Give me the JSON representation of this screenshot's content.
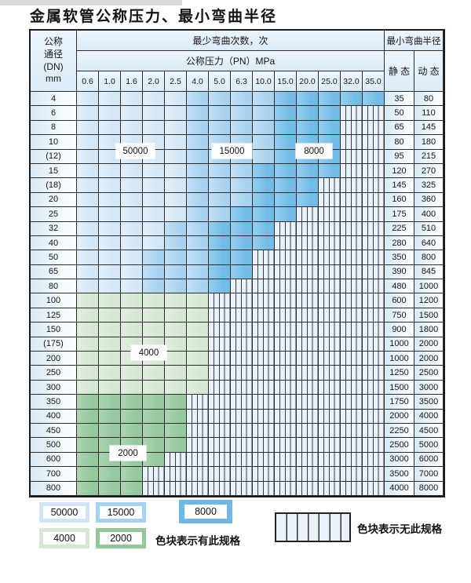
{
  "title": "金属软管公称压力、最小弯曲半径",
  "table": {
    "header": {
      "dn_lines": [
        "公称",
        "通径",
        "(DN)",
        "mm"
      ],
      "bend_cycles": "最少弯曲次数，次",
      "pressure": "公称压力（PN）MPa",
      "pressure_values": [
        "0.6",
        "1.0",
        "1.6",
        "2.0",
        "2.5",
        "4.0",
        "5.0",
        "6.3",
        "10.0",
        "15.0",
        "20.0",
        "25.0",
        "32.0",
        "35.0"
      ],
      "min_bend_radius": "最小弯曲半径",
      "static_label": "静 态",
      "dynamic_label": "动 态"
    },
    "zone_legend_note": "zones per row: light=50000次, medium=15000次, dark=8000次, green_light=4000次, green_dark=2000次, remaining columns hatched = 无此规格",
    "rows": [
      {
        "dn": "4",
        "static": "35",
        "dynamic": "80",
        "light": 5,
        "medium": 4,
        "dark": 5,
        "green_light": 0,
        "green_dark": 0
      },
      {
        "dn": "6",
        "static": "50",
        "dynamic": "110",
        "light": 5,
        "medium": 4,
        "dark": 3,
        "green_light": 0,
        "green_dark": 0
      },
      {
        "dn": "8",
        "static": "65",
        "dynamic": "145",
        "light": 5,
        "medium": 4,
        "dark": 3,
        "green_light": 0,
        "green_dark": 0
      },
      {
        "dn": "10",
        "static": "80",
        "dynamic": "180",
        "light": 5,
        "medium": 4,
        "dark": 3,
        "green_light": 0,
        "green_dark": 0
      },
      {
        "dn": "(12)",
        "static": "95",
        "dynamic": "215",
        "light": 5,
        "medium": 4,
        "dark": 3,
        "green_light": 0,
        "green_dark": 0
      },
      {
        "dn": "15",
        "static": "120",
        "dynamic": "270",
        "light": 5,
        "medium": 3,
        "dark": 4,
        "green_light": 0,
        "green_dark": 0
      },
      {
        "dn": "(18)",
        "static": "145",
        "dynamic": "325",
        "light": 5,
        "medium": 3,
        "dark": 3,
        "green_light": 0,
        "green_dark": 0
      },
      {
        "dn": "20",
        "static": "160",
        "dynamic": "360",
        "light": 5,
        "medium": 3,
        "dark": 3,
        "green_light": 0,
        "green_dark": 0
      },
      {
        "dn": "25",
        "static": "175",
        "dynamic": "400",
        "light": 5,
        "medium": 2,
        "dark": 3,
        "green_light": 0,
        "green_dark": 0
      },
      {
        "dn": "32",
        "static": "225",
        "dynamic": "510",
        "light": 4,
        "medium": 2,
        "dark": 3,
        "green_light": 0,
        "green_dark": 0
      },
      {
        "dn": "40",
        "static": "280",
        "dynamic": "640",
        "light": 4,
        "medium": 2,
        "dark": 3,
        "green_light": 0,
        "green_dark": 0
      },
      {
        "dn": "50",
        "static": "350",
        "dynamic": "800",
        "light": 3,
        "medium": 3,
        "dark": 2,
        "green_light": 0,
        "green_dark": 0
      },
      {
        "dn": "65",
        "static": "390",
        "dynamic": "845",
        "light": 3,
        "medium": 3,
        "dark": 2,
        "green_light": 0,
        "green_dark": 0
      },
      {
        "dn": "80",
        "static": "480",
        "dynamic": "1000",
        "light": 3,
        "medium": 3,
        "dark": 1,
        "green_light": 0,
        "green_dark": 0
      },
      {
        "dn": "100",
        "static": "600",
        "dynamic": "1200",
        "light": 0,
        "medium": 0,
        "dark": 0,
        "green_light": 6,
        "green_dark": 0
      },
      {
        "dn": "125",
        "static": "750",
        "dynamic": "1500",
        "light": 0,
        "medium": 0,
        "dark": 0,
        "green_light": 6,
        "green_dark": 0
      },
      {
        "dn": "150",
        "static": "900",
        "dynamic": "1800",
        "light": 0,
        "medium": 0,
        "dark": 0,
        "green_light": 6,
        "green_dark": 0
      },
      {
        "dn": "(175)",
        "static": "1000",
        "dynamic": "2000",
        "light": 0,
        "medium": 0,
        "dark": 0,
        "green_light": 6,
        "green_dark": 0
      },
      {
        "dn": "200",
        "static": "1000",
        "dynamic": "2000",
        "light": 0,
        "medium": 0,
        "dark": 0,
        "green_light": 6,
        "green_dark": 0
      },
      {
        "dn": "250",
        "static": "1250",
        "dynamic": "2500",
        "light": 0,
        "medium": 0,
        "dark": 0,
        "green_light": 6,
        "green_dark": 0
      },
      {
        "dn": "300",
        "static": "1500",
        "dynamic": "3000",
        "light": 0,
        "medium": 0,
        "dark": 0,
        "green_light": 6,
        "green_dark": 0
      },
      {
        "dn": "350",
        "static": "1750",
        "dynamic": "3500",
        "light": 0,
        "medium": 0,
        "dark": 0,
        "green_light": 0,
        "green_dark": 5
      },
      {
        "dn": "400",
        "static": "2000",
        "dynamic": "4000",
        "light": 0,
        "medium": 0,
        "dark": 0,
        "green_light": 0,
        "green_dark": 5
      },
      {
        "dn": "450",
        "static": "2250",
        "dynamic": "4500",
        "light": 0,
        "medium": 0,
        "dark": 0,
        "green_light": 0,
        "green_dark": 5
      },
      {
        "dn": "500",
        "static": "2500",
        "dynamic": "5000",
        "light": 0,
        "medium": 0,
        "dark": 0,
        "green_light": 0,
        "green_dark": 5
      },
      {
        "dn": "600",
        "static": "3000",
        "dynamic": "6000",
        "light": 0,
        "medium": 0,
        "dark": 0,
        "green_light": 0,
        "green_dark": 4
      },
      {
        "dn": "700",
        "static": "3500",
        "dynamic": "7000",
        "light": 0,
        "medium": 0,
        "dark": 0,
        "green_light": 0,
        "green_dark": 3
      },
      {
        "dn": "800",
        "static": "4000",
        "dynamic": "8000",
        "light": 0,
        "medium": 0,
        "dark": 0,
        "green_light": 0,
        "green_dark": 3
      }
    ]
  },
  "overlays": {
    "b50000": "50000",
    "b15000": "15000",
    "b8000": "8000",
    "g4000": "4000",
    "g2000": "2000"
  },
  "legend": {
    "sw50000": "50000",
    "sw15000": "15000",
    "sw8000": "8000",
    "sw4000": "4000",
    "sw2000": "2000",
    "has_spec": "色块表示有此规格",
    "no_spec": "色块表示无此规格"
  },
  "colors": {
    "blue_50000": "#d3e7f7",
    "blue_15000": "#a8d3f0",
    "blue_8000": "#72bce7",
    "green_4000": "#d6e8d3",
    "green_2000": "#95c99e",
    "cell_background": "#e9f2fa",
    "grid_line": "#2d2d2d"
  }
}
